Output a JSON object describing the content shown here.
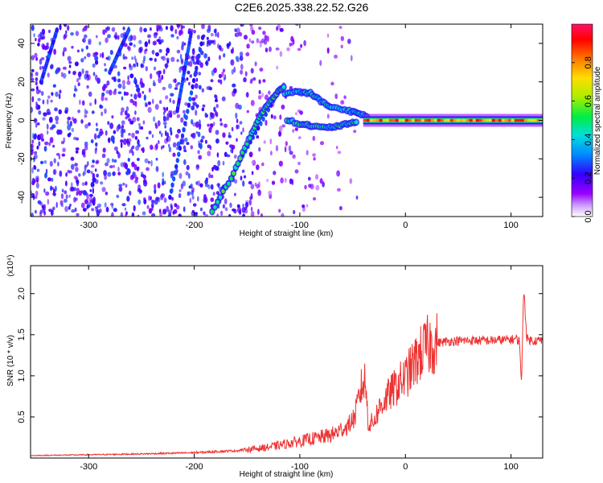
{
  "figure_title": "C2E6.2025.338.22.52.G26",
  "colors": {
    "snr_line": "#ee3333",
    "spectrogram_dots": "#7a2bff",
    "colormap": [
      "#ffffff",
      "#9900ff",
      "#3300ff",
      "#0088ff",
      "#00dddd",
      "#00ee44",
      "#aaee00",
      "#ffdd00",
      "#ff7700",
      "#ff0000",
      "#ff1166"
    ]
  },
  "chart_data": [
    {
      "type": "heatmap",
      "xlabel": "Height of straight line (km)",
      "ylabel": "Frequency (Hz)",
      "xlim": [
        -355,
        130
      ],
      "ylim": [
        -50,
        50
      ],
      "x_ticks": [
        -300,
        -200,
        -100,
        0,
        100
      ],
      "x_tick_labels": [
        "-300",
        "-200",
        "-100",
        "0",
        "100"
      ],
      "y_ticks": [
        -40,
        -20,
        0,
        20,
        40
      ],
      "y_tick_labels": [
        "-40",
        "-20",
        "0",
        "20",
        "40"
      ],
      "colorbar": {
        "label": "Normalized spectral amplitude",
        "range": [
          0,
          1
        ],
        "ticks": [
          0.0,
          0.2,
          0.4,
          0.6,
          0.8
        ],
        "tick_labels": [
          "0.0",
          "0.2",
          "0.4",
          "0.6",
          "0.8"
        ]
      },
      "features": {
        "dc_ridge": {
          "x_start": -40,
          "x_end": 130,
          "frequency": 0
        },
        "oblique_streaks": [
          {
            "x": [
              -183,
              -120
            ],
            "y": [
              -47,
              15
            ]
          },
          {
            "x": [
              -223,
              -192
            ],
            "y": [
              -40,
              43
            ]
          },
          {
            "x": [
              -216,
              -203
            ],
            "y": [
              5,
              45
            ]
          },
          {
            "x": [
              -345,
              -330
            ],
            "y": [
              20,
              47
            ]
          },
          {
            "x": [
              -280,
              -262
            ],
            "y": [
              25,
              47
            ]
          }
        ],
        "bright_arc": [
          [
            -183,
            -47
          ],
          [
            -165,
            -30
          ],
          [
            -150,
            -12
          ],
          [
            -140,
            0
          ],
          [
            -131,
            8
          ],
          [
            -122,
            14
          ],
          [
            -114,
            18
          ]
        ],
        "upper_branch": [
          [
            -114,
            14
          ],
          [
            -100,
            15
          ],
          [
            -90,
            14
          ],
          [
            -80,
            10
          ],
          [
            -70,
            7
          ],
          [
            -55,
            5
          ],
          [
            -45,
            4
          ],
          [
            -35,
            2
          ]
        ],
        "lower_branch": [
          [
            -112,
            0
          ],
          [
            -98,
            -2
          ],
          [
            -88,
            -3
          ],
          [
            -75,
            -4
          ],
          [
            -65,
            -3
          ],
          [
            -55,
            -2
          ],
          [
            -45,
            -1
          ]
        ]
      }
    },
    {
      "type": "line",
      "xlabel": "Height of straight line (km)",
      "ylabel": "SNR (10 * v/v)",
      "y_multiplier_label": "(x10⁴)",
      "xlim": [
        -355,
        130
      ],
      "ylim": [
        0,
        23400
      ],
      "x_ticks": [
        -300,
        -200,
        -100,
        0,
        100
      ],
      "x_tick_labels": [
        "-300",
        "-200",
        "-100",
        "0",
        "100"
      ],
      "y_ticks": [
        5000,
        10000,
        15000,
        20000
      ],
      "y_tick_labels": [
        "0.5",
        "1.0",
        "1.5",
        "2.0"
      ],
      "series": [
        {
          "x": [
            -355,
            -300,
            -250,
            -200,
            -160,
            -130,
            -110,
            -90,
            -70,
            -55,
            -48,
            -42,
            -38,
            -35,
            -30,
            -25,
            -20,
            -15,
            -10,
            -5,
            0,
            5,
            10,
            15,
            20,
            30,
            40,
            60,
            80,
            100,
            105,
            108,
            110,
            112,
            115,
            120,
            130
          ],
          "y": [
            300,
            400,
            500,
            650,
            900,
            1300,
            1800,
            2300,
            2800,
            3800,
            5000,
            8500,
            9500,
            4000,
            4500,
            6000,
            7000,
            7800,
            8500,
            9200,
            9800,
            10800,
            11800,
            12800,
            13600,
            14000,
            14200,
            14300,
            14300,
            14400,
            14500,
            14200,
            9000,
            21000,
            14500,
            14300,
            14300
          ]
        }
      ]
    }
  ]
}
